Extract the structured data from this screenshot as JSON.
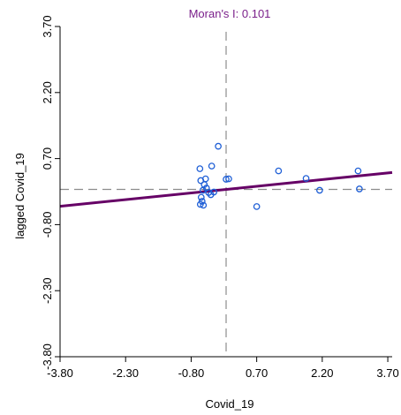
{
  "chart_data": {
    "type": "scatter",
    "title": "Moran's I: 0.101",
    "xlabel": "Covid_19",
    "ylabel": "lagged Covid_19",
    "xlim": [
      -3.8,
      3.8
    ],
    "ylim": [
      -3.8,
      3.7
    ],
    "x_ticks": [
      "-3.80",
      "-2.30",
      "-0.80",
      "0.70",
      "2.20",
      "3.70"
    ],
    "y_ticks": [
      "-3.80",
      "-2.30",
      "-0.80",
      "0.70",
      "2.20",
      "3.70"
    ],
    "x_mean": 0.0,
    "y_mean": 0.0,
    "regression_slope": 0.101,
    "regression_intercept": 0.0,
    "points": [
      {
        "x": -0.57,
        "y": -0.18
      },
      {
        "x": -0.55,
        "y": -0.27
      },
      {
        "x": -0.52,
        "y": -0.36
      },
      {
        "x": -0.59,
        "y": -0.34
      },
      {
        "x": -0.53,
        "y": -0.02
      },
      {
        "x": -0.45,
        "y": 0.03
      },
      {
        "x": -0.5,
        "y": 0.11
      },
      {
        "x": -0.47,
        "y": 0.24
      },
      {
        "x": -0.58,
        "y": 0.2
      },
      {
        "x": -0.6,
        "y": 0.47
      },
      {
        "x": -0.4,
        "y": -0.07
      },
      {
        "x": -0.35,
        "y": -0.12
      },
      {
        "x": -0.28,
        "y": -0.06
      },
      {
        "x": -0.33,
        "y": 0.53
      },
      {
        "x": -0.18,
        "y": 0.98
      },
      {
        "x": 0.0,
        "y": 0.23
      },
      {
        "x": 0.06,
        "y": 0.24
      },
      {
        "x": 0.7,
        "y": -0.39
      },
      {
        "x": 1.2,
        "y": 0.42
      },
      {
        "x": 1.83,
        "y": 0.25
      },
      {
        "x": 2.14,
        "y": -0.02
      },
      {
        "x": 3.02,
        "y": 0.42
      },
      {
        "x": 3.05,
        "y": 0.01
      }
    ],
    "colors": {
      "points": "#1f5fd6",
      "regression": "#660066",
      "title": "#7a1f8a",
      "mean_lines": "#8c8c8c",
      "axes": "#000000"
    }
  }
}
